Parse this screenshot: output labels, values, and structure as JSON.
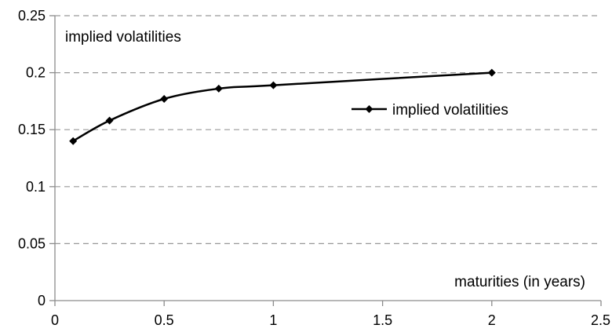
{
  "chart_data": {
    "type": "line",
    "title": "",
    "ylabel": "implied volatilities",
    "xlabel": "maturities (in years)",
    "xlim": [
      0,
      2.5
    ],
    "ylim": [
      0,
      0.25
    ],
    "x_ticks": [
      0,
      0.5,
      1,
      1.5,
      2,
      2.5
    ],
    "x_tick_labels": [
      "0",
      "0.5",
      "1",
      "1.5",
      "2",
      "2.5"
    ],
    "y_ticks": [
      0,
      0.05,
      0.1,
      0.15,
      0.2,
      0.25
    ],
    "y_tick_labels": [
      "0",
      "0.05",
      "0.1",
      "0.15",
      "0.2",
      "0.25"
    ],
    "grid": "horizontal dashed",
    "legend_position": "right",
    "smoothed": true,
    "series": [
      {
        "name": "implied volatilities",
        "color": "#000000",
        "marker": "diamond",
        "x": [
          0.0833,
          0.25,
          0.5,
          0.75,
          1,
          2
        ],
        "y": [
          0.14,
          0.158,
          0.177,
          0.186,
          0.189,
          0.2
        ]
      }
    ]
  }
}
